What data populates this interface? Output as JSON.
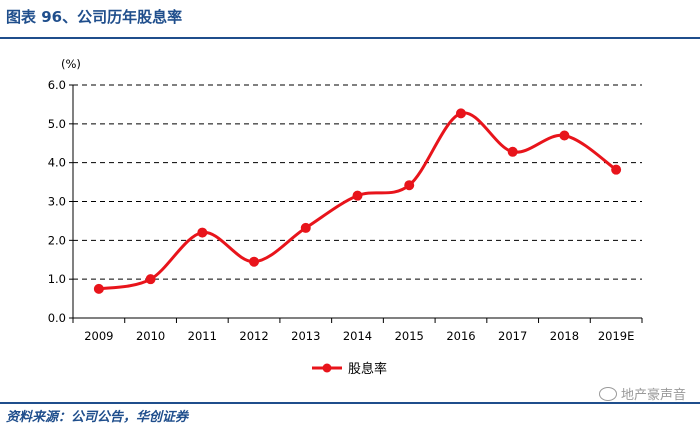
{
  "title": "图表 96、公司历年股息率",
  "source": "资料来源：公司公告，华创证券",
  "watermark": "地产豪声音",
  "colors": {
    "series": "#e8141b",
    "brand": "#1f4e8c"
  },
  "chart_data": {
    "type": "line",
    "title": "",
    "ylabel": "(%)",
    "xlabel": "",
    "categories": [
      "2009",
      "2010",
      "2011",
      "2012",
      "2013",
      "2014",
      "2015",
      "2016",
      "2017",
      "2018",
      "2019E"
    ],
    "series": [
      {
        "name": "股息率",
        "values": [
          0.75,
          1.0,
          2.2,
          1.45,
          2.32,
          3.15,
          3.42,
          5.27,
          4.28,
          4.7,
          3.82
        ]
      }
    ],
    "ylim": [
      0,
      6
    ],
    "yticks": [
      "0.0",
      "1.0",
      "2.0",
      "3.0",
      "4.0",
      "5.0",
      "6.0"
    ],
    "grid": "horizontal-dashed",
    "legend": "bottom-center",
    "smooth": true
  }
}
